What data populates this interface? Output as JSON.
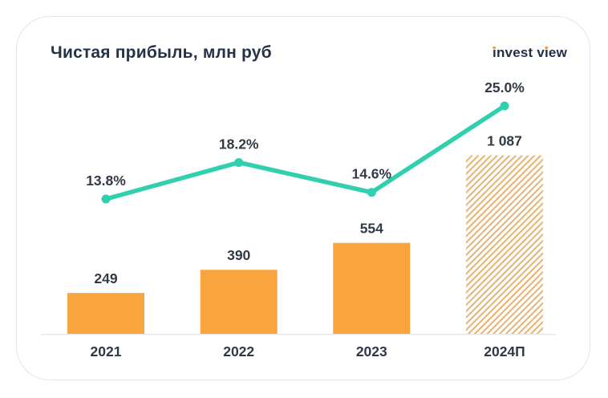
{
  "header": {
    "title": "Чистая прибыль, млн руб",
    "logo_text": "invest view"
  },
  "colors": {
    "title": "#24334A",
    "logo_text": "#222F44",
    "logo_dot": "#F0993E",
    "bar": "#FAA440",
    "bar_hatch": "#E6B476",
    "line": "#30CFAD",
    "data_label": "#333A47",
    "category_label": "#2E3846",
    "axis_line": "#EAEAEE",
    "card_border": "#E4E4E9",
    "background": "#FFFFFF"
  },
  "chart_data": {
    "type": "combo-bar-line",
    "title": "Чистая прибыль, млн руб",
    "categories": [
      "2021",
      "2022",
      "2023",
      "2024П"
    ],
    "series": [
      {
        "type": "bar",
        "unit": "млн руб",
        "values": [
          249,
          390,
          554,
          1087
        ],
        "labels": [
          "249",
          "390",
          "554",
          "1 087"
        ],
        "forecast": [
          false,
          false,
          false,
          true
        ]
      },
      {
        "type": "line",
        "unit": "%",
        "values": [
          13.8,
          18.2,
          14.6,
          25.0
        ],
        "labels": [
          "13.8%",
          "18.2%",
          "14.6%",
          "25.0%"
        ]
      }
    ],
    "grid": false,
    "legend": false,
    "bar_axis_baseline": 0,
    "forecast_note": "2024П — прогнозное значение (штриховка)"
  }
}
